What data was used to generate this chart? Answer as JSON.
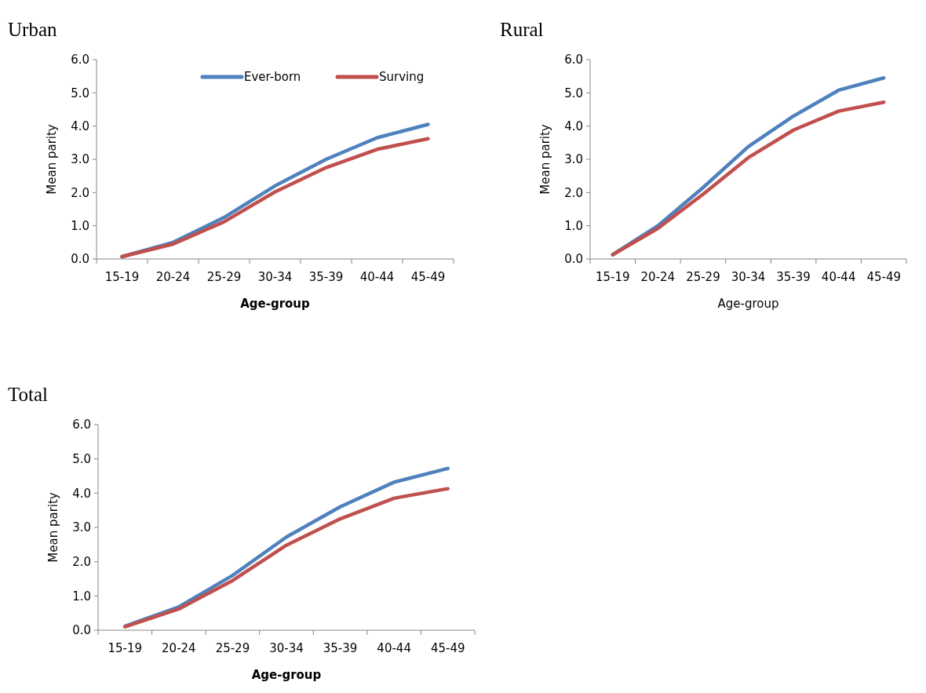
{
  "chart_data": [
    {
      "type": "line",
      "title": "Urban",
      "xlabel": "Age-group",
      "ylabel": "Mean parity",
      "categories": [
        "15-19",
        "20-24",
        "25-29",
        "30-34",
        "35-39",
        "40-44",
        "45-49"
      ],
      "series": [
        {
          "name": "Ever-born",
          "color": "#4f81bd",
          "values": [
            0.07,
            0.5,
            1.25,
            2.2,
            3.0,
            3.65,
            4.05
          ]
        },
        {
          "name": "Surving",
          "color": "#c0504d",
          "values": [
            0.07,
            0.45,
            1.12,
            2.02,
            2.75,
            3.3,
            3.62
          ]
        }
      ],
      "ylim": [
        0,
        6
      ],
      "yticks": [
        {
          "value": 0,
          "label": "0.0"
        },
        {
          "value": 1,
          "label": "1.0"
        },
        {
          "value": 2,
          "label": "2.0"
        },
        {
          "value": 3,
          "label": "3.0"
        },
        {
          "value": 4,
          "label": "4.0"
        },
        {
          "value": 5,
          "label": "5.0"
        },
        {
          "value": 6,
          "label": "6.0"
        }
      ],
      "legend": "top right",
      "grid": false,
      "marker": "none"
    },
    {
      "type": "line",
      "title": "Rural",
      "xlabel": "Age-group",
      "ylabel": "Mean parity",
      "categories": [
        "15-19",
        "20-24",
        "25-29",
        "30-34",
        "35-39",
        "40-44",
        "45-49"
      ],
      "series": [
        {
          "color": "#4f81bd",
          "values": [
            0.13,
            1.0,
            2.15,
            3.38,
            4.3,
            5.08,
            5.45
          ]
        },
        {
          "color": "#c0504d",
          "values": [
            0.13,
            0.92,
            1.95,
            3.05,
            3.88,
            4.45,
            4.72
          ]
        }
      ],
      "ylim": [
        0,
        6
      ],
      "yticks": [
        {
          "value": 0,
          "label": "0.0"
        },
        {
          "value": 1,
          "label": "1.0"
        },
        {
          "value": 2,
          "label": "2.0"
        },
        {
          "value": 3,
          "label": "3.0"
        },
        {
          "value": 4,
          "label": "4.0"
        },
        {
          "value": 5,
          "label": "5.0"
        },
        {
          "value": 6,
          "label": "6.0"
        }
      ],
      "grid": false,
      "marker": "none"
    },
    {
      "type": "line",
      "title": "Total",
      "xlabel": "Age-group",
      "ylabel": "Mean parity",
      "categories": [
        "15-19",
        "20-24",
        "25-29",
        "30-34",
        "35-39",
        "40-44",
        "45-49"
      ],
      "series": [
        {
          "color": "#4f81bd",
          "values": [
            0.12,
            0.68,
            1.6,
            2.72,
            3.6,
            4.32,
            4.72
          ]
        },
        {
          "color": "#c0504d",
          "values": [
            0.1,
            0.62,
            1.45,
            2.48,
            3.25,
            3.85,
            4.13
          ]
        }
      ],
      "ylim": [
        0,
        6
      ],
      "yticks": [
        {
          "value": 0,
          "label": "0.0"
        },
        {
          "value": 1,
          "label": "1.0"
        },
        {
          "value": 2,
          "label": "2.0"
        },
        {
          "value": 3,
          "label": "3.0"
        },
        {
          "value": 4,
          "label": "4.0"
        },
        {
          "value": 5,
          "label": "5.0"
        },
        {
          "value": 6,
          "label": "6.0"
        }
      ],
      "grid": false,
      "marker": "none"
    }
  ]
}
